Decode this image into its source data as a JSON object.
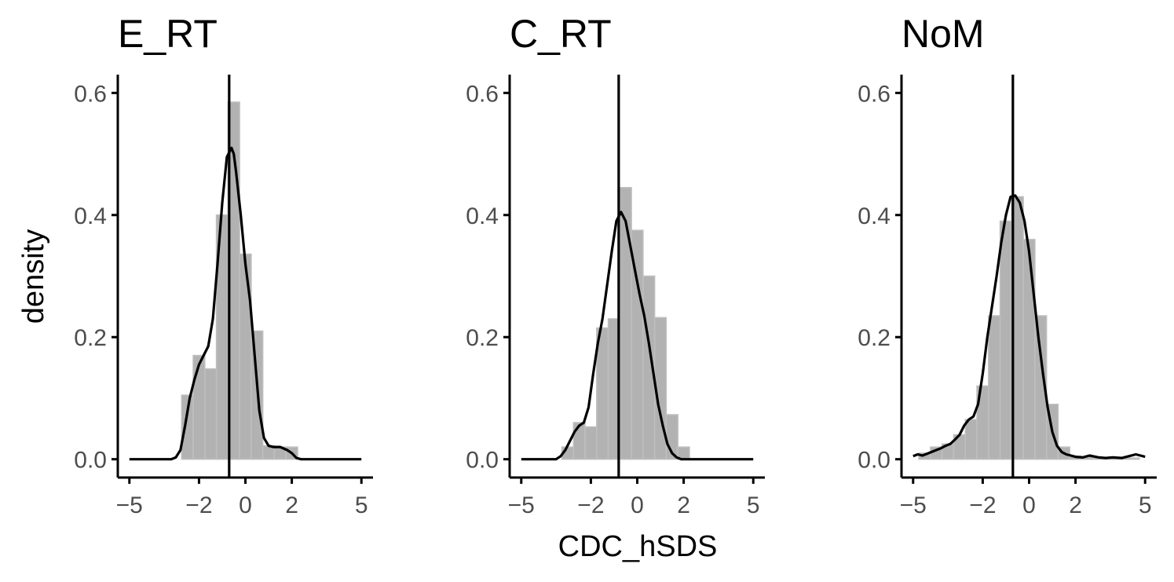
{
  "chart_data": {
    "type": "histogram_density_facets",
    "xlabel": "CDC_hSDS",
    "ylabel": "density",
    "xlim": [
      -5.5,
      5.5
    ],
    "ylim": [
      -0.03,
      0.63
    ],
    "x_ticks": [
      -5,
      -2,
      0,
      2,
      5
    ],
    "x_tick_labels": [
      "−5",
      "−2",
      "0",
      "2",
      "5"
    ],
    "y_ticks": [
      0.0,
      0.2,
      0.4,
      0.6
    ],
    "y_tick_labels": [
      "0.0",
      "0.2",
      "0.4",
      "0.6"
    ],
    "bin_width": 0.5,
    "colors": {
      "bars": "#b2b2b2",
      "line": "#000000",
      "tick_text": "#4d4d4d"
    },
    "panels": [
      {
        "title": "E_RT",
        "mean_line": -0.7,
        "bins": [
          {
            "x": -2.5,
            "density": 0.105
          },
          {
            "x": -2.0,
            "density": 0.17
          },
          {
            "x": -1.5,
            "density": 0.148
          },
          {
            "x": -1.0,
            "density": 0.4
          },
          {
            "x": -0.5,
            "density": 0.585
          },
          {
            "x": 0.0,
            "density": 0.336
          },
          {
            "x": 0.5,
            "density": 0.21
          },
          {
            "x": 1.0,
            "density": 0.022
          },
          {
            "x": 1.5,
            "density": 0.02
          },
          {
            "x": 2.0,
            "density": 0.02
          }
        ],
        "density": {
          "x": [
            -5.0,
            -3.2,
            -3.0,
            -2.8,
            -2.6,
            -2.4,
            -2.2,
            -2.0,
            -1.8,
            -1.6,
            -1.4,
            -1.2,
            -1.0,
            -0.8,
            -0.6,
            -0.5,
            -0.4,
            -0.2,
            0.0,
            0.2,
            0.4,
            0.6,
            0.8,
            1.0,
            1.2,
            1.5,
            1.8,
            2.0,
            2.2,
            2.4,
            5.0
          ],
          "y": [
            0.0,
            0.0,
            0.003,
            0.015,
            0.055,
            0.1,
            0.13,
            0.155,
            0.17,
            0.185,
            0.23,
            0.32,
            0.42,
            0.495,
            0.51,
            0.5,
            0.47,
            0.4,
            0.32,
            0.26,
            0.17,
            0.08,
            0.035,
            0.022,
            0.02,
            0.02,
            0.015,
            0.01,
            0.002,
            0.0,
            0.0
          ]
        }
      },
      {
        "title": "C_RT",
        "mean_line": -0.8,
        "bins": [
          {
            "x": -3.0,
            "density": 0.02
          },
          {
            "x": -2.5,
            "density": 0.06
          },
          {
            "x": -2.0,
            "density": 0.053
          },
          {
            "x": -1.5,
            "density": 0.215
          },
          {
            "x": -1.0,
            "density": 0.23
          },
          {
            "x": -0.5,
            "density": 0.445
          },
          {
            "x": 0.0,
            "density": 0.375
          },
          {
            "x": 0.5,
            "density": 0.3
          },
          {
            "x": 1.0,
            "density": 0.232
          },
          {
            "x": 1.5,
            "density": 0.073
          },
          {
            "x": 2.0,
            "density": 0.02
          }
        ],
        "density": {
          "x": [
            -5.0,
            -3.5,
            -3.3,
            -3.1,
            -2.9,
            -2.7,
            -2.5,
            -2.3,
            -2.1,
            -1.9,
            -1.7,
            -1.5,
            -1.3,
            -1.1,
            -0.9,
            -0.7,
            -0.5,
            -0.3,
            -0.1,
            0.1,
            0.3,
            0.5,
            0.7,
            0.9,
            1.1,
            1.3,
            1.5,
            1.7,
            1.9,
            2.1,
            5.0
          ],
          "y": [
            0.0,
            0.0,
            0.005,
            0.015,
            0.03,
            0.045,
            0.055,
            0.06,
            0.085,
            0.14,
            0.19,
            0.23,
            0.285,
            0.34,
            0.39,
            0.405,
            0.39,
            0.35,
            0.31,
            0.27,
            0.235,
            0.19,
            0.14,
            0.09,
            0.055,
            0.025,
            0.01,
            0.003,
            0.0,
            0.0,
            0.0
          ]
        }
      },
      {
        "title": "NoM",
        "mean_line": -0.7,
        "bins": [
          {
            "x": -4.5,
            "density": 0.01
          },
          {
            "x": -4.0,
            "density": 0.02
          },
          {
            "x": -3.5,
            "density": 0.025
          },
          {
            "x": -3.0,
            "density": 0.04
          },
          {
            "x": -2.5,
            "density": 0.065
          },
          {
            "x": -2.0,
            "density": 0.12
          },
          {
            "x": -1.5,
            "density": 0.235
          },
          {
            "x": -1.0,
            "density": 0.39
          },
          {
            "x": -0.5,
            "density": 0.43
          },
          {
            "x": 0.0,
            "density": 0.36
          },
          {
            "x": 0.5,
            "density": 0.235
          },
          {
            "x": 1.0,
            "density": 0.09
          },
          {
            "x": 1.5,
            "density": 0.02
          },
          {
            "x": 2.0,
            "density": 0.005
          },
          {
            "x": 2.5,
            "density": 0.003
          },
          {
            "x": 3.0,
            "density": 0.002
          },
          {
            "x": 3.5,
            "density": 0.002
          },
          {
            "x": 4.0,
            "density": 0.002
          },
          {
            "x": 4.5,
            "density": 0.002
          }
        ],
        "density": {
          "x": [
            -5.0,
            -4.8,
            -4.6,
            -4.4,
            -4.2,
            -4.0,
            -3.8,
            -3.6,
            -3.4,
            -3.2,
            -3.0,
            -2.8,
            -2.6,
            -2.4,
            -2.2,
            -2.0,
            -1.8,
            -1.6,
            -1.4,
            -1.2,
            -1.0,
            -0.8,
            -0.6,
            -0.4,
            -0.2,
            0.0,
            0.2,
            0.4,
            0.6,
            0.8,
            1.0,
            1.2,
            1.4,
            1.6,
            1.8,
            2.0,
            2.3,
            2.6,
            3.0,
            3.3,
            3.6,
            4.0,
            4.3,
            4.6,
            4.8,
            5.0
          ],
          "y": [
            0.005,
            0.008,
            0.006,
            0.009,
            0.012,
            0.015,
            0.018,
            0.022,
            0.025,
            0.032,
            0.04,
            0.055,
            0.065,
            0.07,
            0.09,
            0.14,
            0.2,
            0.25,
            0.3,
            0.355,
            0.4,
            0.43,
            0.432,
            0.42,
            0.39,
            0.34,
            0.27,
            0.2,
            0.14,
            0.085,
            0.045,
            0.022,
            0.012,
            0.008,
            0.006,
            0.004,
            0.003,
            0.006,
            0.003,
            0.002,
            0.003,
            0.002,
            0.005,
            0.008,
            0.006,
            0.004
          ]
        }
      }
    ]
  }
}
